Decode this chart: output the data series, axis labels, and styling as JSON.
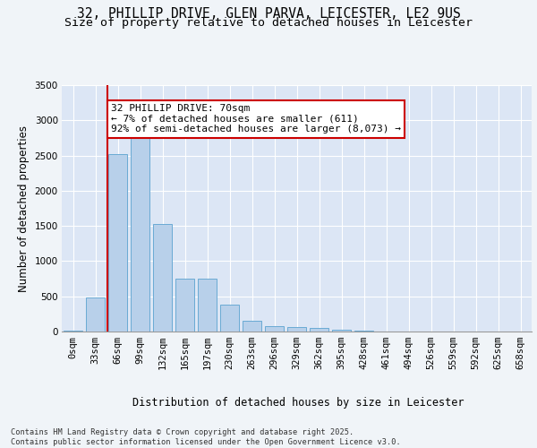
{
  "title_line1": "32, PHILLIP DRIVE, GLEN PARVA, LEICESTER, LE2 9US",
  "title_line2": "Size of property relative to detached houses in Leicester",
  "xlabel": "Distribution of detached houses by size in Leicester",
  "ylabel": "Number of detached properties",
  "bar_labels": [
    "0sqm",
    "33sqm",
    "66sqm",
    "99sqm",
    "132sqm",
    "165sqm",
    "197sqm",
    "230sqm",
    "263sqm",
    "296sqm",
    "329sqm",
    "362sqm",
    "395sqm",
    "428sqm",
    "461sqm",
    "494sqm",
    "526sqm",
    "559sqm",
    "592sqm",
    "625sqm",
    "658sqm"
  ],
  "bar_values": [
    10,
    480,
    2520,
    2840,
    1530,
    750,
    750,
    380,
    155,
    80,
    60,
    45,
    30,
    10,
    5,
    2,
    1,
    1,
    0,
    0,
    0
  ],
  "bar_color": "#b8d0ea",
  "bar_edge_color": "#6aaad4",
  "background_color": "#dce6f5",
  "grid_color": "#ffffff",
  "vline_color": "#cc0000",
  "vline_x": 1.55,
  "annotation_text": "32 PHILLIP DRIVE: 70sqm\n← 7% of detached houses are smaller (611)\n92% of semi-detached houses are larger (8,073) →",
  "annotation_box_color": "#ffffff",
  "annotation_box_edge": "#cc0000",
  "ylim": [
    0,
    3500
  ],
  "yticks": [
    0,
    500,
    1000,
    1500,
    2000,
    2500,
    3000,
    3500
  ],
  "footer_text": "Contains HM Land Registry data © Crown copyright and database right 2025.\nContains public sector information licensed under the Open Government Licence v3.0.",
  "title_fontsize": 10.5,
  "subtitle_fontsize": 9.5,
  "axis_label_fontsize": 8.5,
  "tick_fontsize": 7.5,
  "annotation_fontsize": 8,
  "fig_width": 6.0,
  "fig_height": 5.0,
  "fig_dpi": 100
}
